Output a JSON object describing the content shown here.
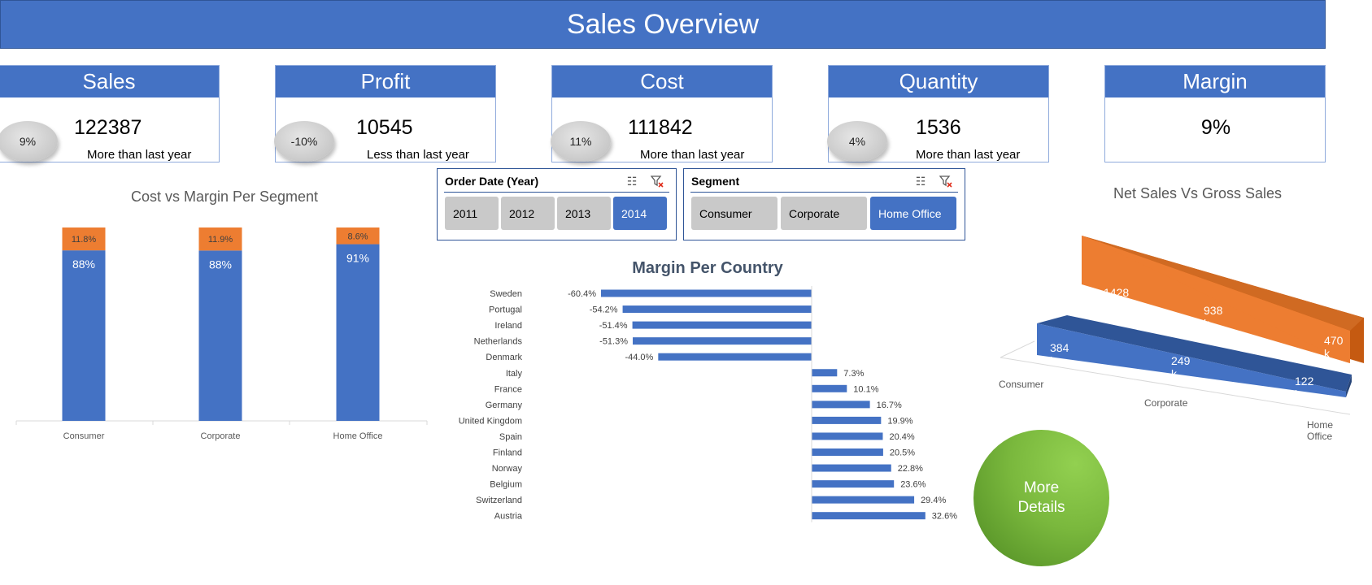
{
  "header": {
    "title": "Sales Overview"
  },
  "kpis": [
    {
      "label": "Sales",
      "change": "9%",
      "value": "122387",
      "note": "More than last year"
    },
    {
      "label": "Profit",
      "change": "-10%",
      "value": "10545",
      "note": "Less than last year"
    },
    {
      "label": "Cost",
      "change": "11%",
      "value": "111842",
      "note": "More than last year"
    },
    {
      "label": "Quantity",
      "change": "4%",
      "value": "1536",
      "note": "More than last year"
    },
    {
      "label": "Margin",
      "value": "9%"
    }
  ],
  "slicers": {
    "year": {
      "title": "Order Date (Year)",
      "options": [
        "2011",
        "2012",
        "2013",
        "2014"
      ],
      "selected": "2014"
    },
    "segment": {
      "title": "Segment",
      "options": [
        "Consumer",
        "Corporate",
        "Home Office"
      ],
      "selected": "Home Office"
    }
  },
  "more_button": {
    "line1": "More",
    "line2": "Details"
  },
  "colors": {
    "accent": "#4472C4",
    "orange": "#ED7D31",
    "green": "#7AB83D",
    "slicer_grey": "#C9C9C9"
  },
  "chart_data": [
    {
      "type": "bar",
      "stacked": true,
      "percent_stacked": true,
      "title": "Cost vs Margin Per Segment",
      "categories": [
        "Consumer",
        "Corporate",
        "Home Office"
      ],
      "series": [
        {
          "name": "Cost",
          "values": [
            88,
            88,
            91
          ],
          "labels": [
            "88%",
            "88%",
            "91%"
          ],
          "color": "#4472C4"
        },
        {
          "name": "Margin",
          "values": [
            11.8,
            11.9,
            8.6
          ],
          "labels": [
            "11.8%",
            "11.9%",
            "8.6%"
          ],
          "color": "#ED7D31"
        }
      ]
    },
    {
      "type": "bar",
      "orientation": "horizontal",
      "title": "Margin Per Country",
      "categories": [
        "Sweden",
        "Portugal",
        "Ireland",
        "Netherlands",
        "Denmark",
        "Italy",
        "France",
        "Germany",
        "United Kingdom",
        "Spain",
        "Finland",
        "Norway",
        "Belgium",
        "Switzerland",
        "Austria"
      ],
      "values": [
        -60.4,
        -54.2,
        -51.4,
        -51.3,
        -44.0,
        7.3,
        10.1,
        16.7,
        19.9,
        20.4,
        20.5,
        22.8,
        23.6,
        29.4,
        32.6
      ],
      "labels": [
        "-60.4%",
        "-54.2%",
        "-51.4%",
        "-51.3%",
        "-44.0%",
        "7.3%",
        "10.1%",
        "16.7%",
        "19.9%",
        "20.4%",
        "20.5%",
        "22.8%",
        "23.6%",
        "29.4%",
        "32.6%"
      ],
      "xlim": [
        -60.4,
        42
      ]
    },
    {
      "type": "area",
      "three_d": true,
      "title": "Net Sales Vs Gross Sales",
      "categories": [
        "Consumer",
        "Corporate",
        "Home Office"
      ],
      "series": [
        {
          "name": "Gross Sales",
          "values": [
            1428,
            938,
            470
          ],
          "labels": [
            "1428 k",
            "938 k",
            "470 k"
          ],
          "color": "#ED7D31"
        },
        {
          "name": "Net Sales",
          "values": [
            384,
            249,
            122
          ],
          "labels": [
            "384 k",
            "249 k",
            "122 k"
          ],
          "color": "#4472C4"
        }
      ]
    }
  ]
}
